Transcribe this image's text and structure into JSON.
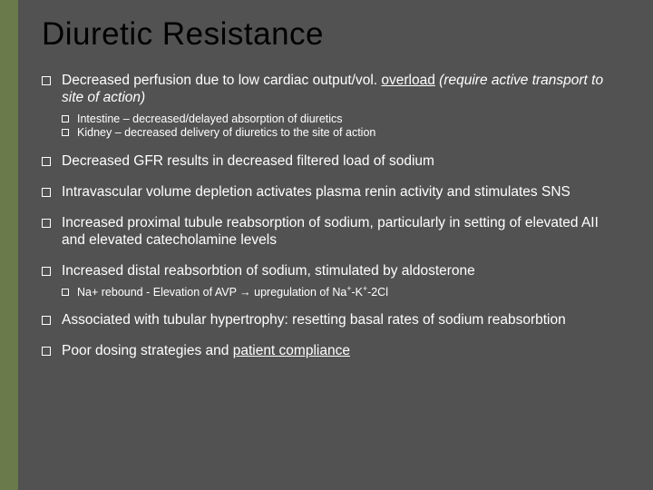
{
  "colors": {
    "accent": "#6b7a4a",
    "background": "#525252",
    "text": "#ffffff",
    "title": "#000000"
  },
  "title": "Diuretic Resistance",
  "b1_main": "Decreased perfusion due to low cardiac output/vol. ",
  "b1_udl": "overload",
  "b1_italic": " (require active transport to site of action)",
  "b1_sub1": "Intestine – decreased/delayed absorption of diuretics",
  "b1_sub2": "Kidney – decreased delivery of diuretics to the site of action",
  "b2": "Decreased GFR results in decreased filtered load of sodium",
  "b3": "Intravascular volume depletion activates plasma renin activity and stimulates SNS",
  "b4": "Increased proximal tubule reabsorption of sodium, particularly in setting of elevated AII and elevated catecholamine levels",
  "b5": "Increased distal reabsorbtion of sodium, stimulated by aldosterone",
  "b5_sub_pre": "Na+ rebound - Elevation of AVP ",
  "b5_sub_arrow": "→",
  "b5_sub_post": " upregulation of Na",
  "b5_sub_sup1": "+",
  "b5_sub_k": "-K",
  "b5_sub_sup2": "+",
  "b5_sub_end": "-2Cl",
  "b6": "Associated with tubular hypertrophy: resetting basal rates of sodium reabsorbtion",
  "b7_pre": "Poor dosing strategies and ",
  "b7_udl": "patient compliance"
}
